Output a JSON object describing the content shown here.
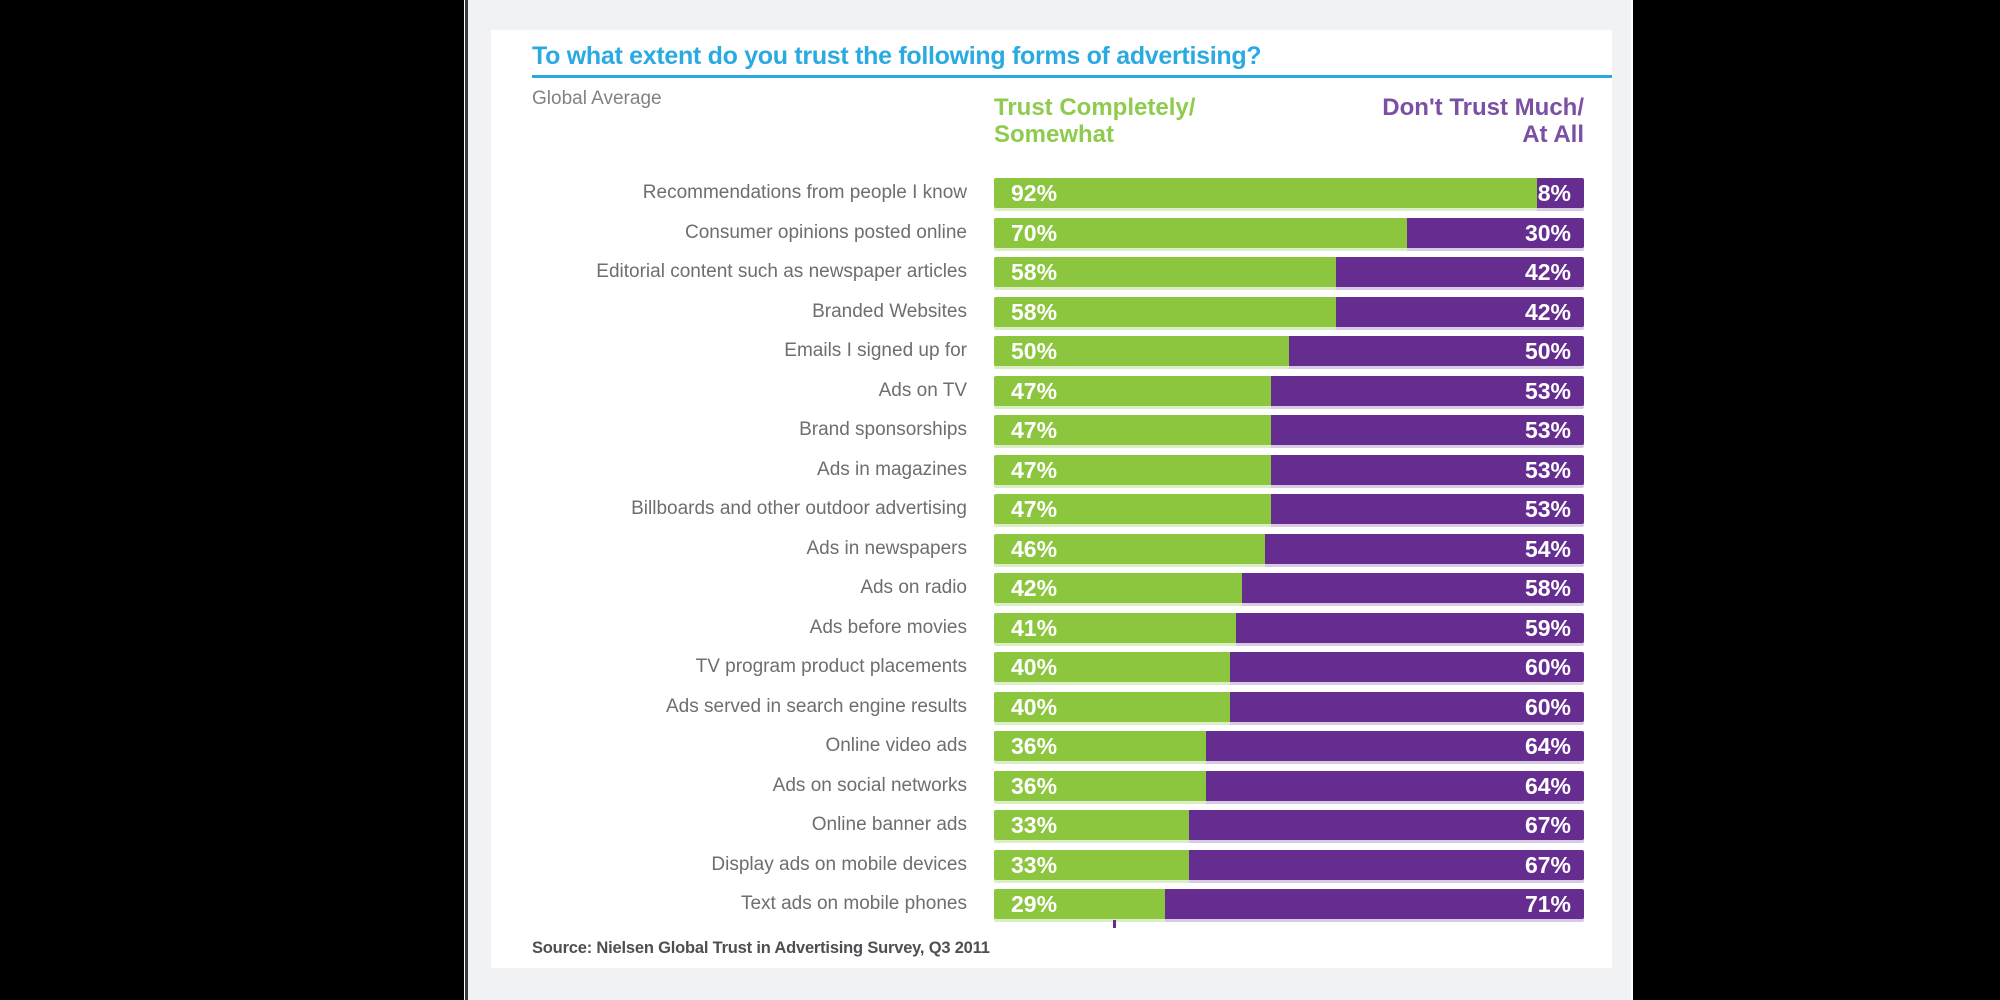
{
  "legend": {
    "trust_line1": "Trust Completely/",
    "trust_line2": "Somewhat",
    "distrust_line1": "Don't Trust Much/",
    "distrust_line2": "At All"
  },
  "colors": {
    "title_accent": "#29abe2",
    "trust_green": "#8cc63e",
    "distrust_purple": "#652d90",
    "legend_green": "#8ecb4f",
    "legend_purple": "#7b4fa3",
    "category_label_gray": "#6d6e71",
    "subtitle_gray": "#808285",
    "source_gray": "#4d4f53",
    "page_bg": "#f1f2f4",
    "panel_bg": "#ffffff",
    "backdrop": "#000000"
  },
  "chart_data": {
    "type": "bar",
    "orientation": "horizontal",
    "stacked": true,
    "title": "To what extent do you trust the following forms of advertising?",
    "subtitle": "Global Average",
    "source": "Source: Nielsen Global Trust in Advertising Survey, Q3 2011",
    "xlim": [
      0,
      100
    ],
    "value_suffix": "%",
    "grid": false,
    "legend_position": "top",
    "categories": [
      "Recommendations from people I know",
      "Consumer opinions posted online",
      "Editorial content such as newspaper articles",
      "Branded Websites",
      "Emails I signed up for",
      "Ads on TV",
      "Brand sponsorships",
      "Ads in magazines",
      "Billboards and other outdoor advertising",
      "Ads in newspapers",
      "Ads on radio",
      "Ads before movies",
      "TV program product placements",
      "Ads served in search engine results",
      "Online video ads",
      "Ads on social networks",
      "Online banner ads",
      "Display ads on mobile devices",
      "Text ads on mobile phones"
    ],
    "series": [
      {
        "name": "Trust Completely/Somewhat",
        "color": "#8cc63e",
        "values": [
          92,
          70,
          58,
          58,
          50,
          47,
          47,
          47,
          47,
          46,
          42,
          41,
          40,
          40,
          36,
          36,
          33,
          33,
          29
        ],
        "labels": [
          "92%",
          "70%",
          "58%",
          "58%",
          "50%",
          "47%",
          "47%",
          "47%",
          "47%",
          "46%",
          "42%",
          "41%",
          "40%",
          "40%",
          "36%",
          "36%",
          "33%",
          "33%",
          "29%"
        ]
      },
      {
        "name": "Don't Trust Much/At All",
        "color": "#652d90",
        "values": [
          8,
          30,
          42,
          42,
          50,
          53,
          53,
          53,
          53,
          54,
          58,
          59,
          60,
          60,
          64,
          64,
          67,
          67,
          71
        ],
        "labels": [
          "8%",
          "30%",
          "42%",
          "42%",
          "50%",
          "53%",
          "53%",
          "53%",
          "53%",
          "54%",
          "58%",
          "59%",
          "60%",
          "60%",
          "64%",
          "64%",
          "67%",
          "67%",
          "71%"
        ]
      }
    ]
  }
}
